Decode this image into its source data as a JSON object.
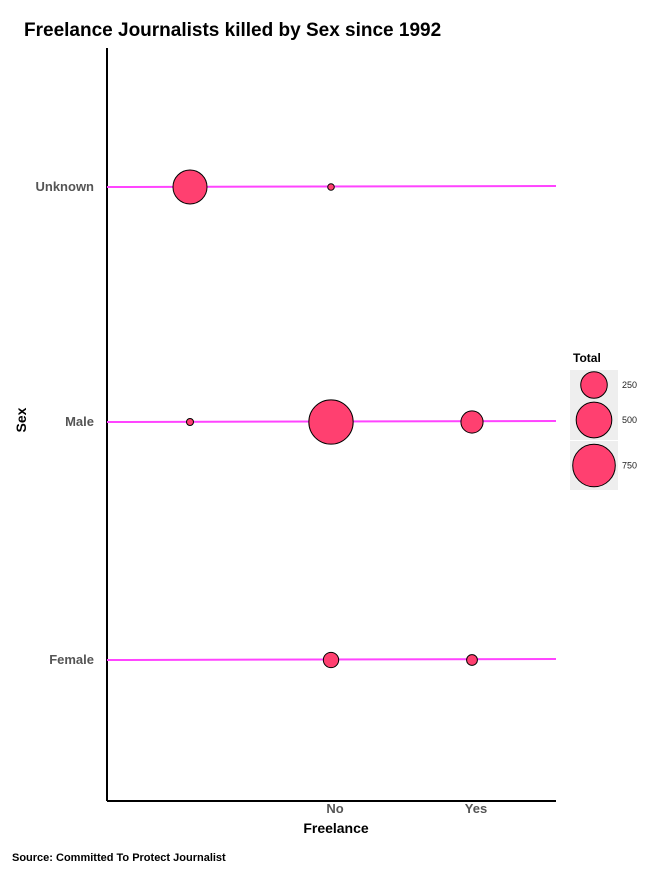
{
  "chart_data": {
    "type": "scatter",
    "title": "Freelance Journalists killed by Sex since 1992",
    "xlabel": "Freelance",
    "ylabel": "Sex",
    "x_categories": [
      "",
      "No",
      "Yes"
    ],
    "y_categories": [
      "Female",
      "Male",
      "Unknown"
    ],
    "series": [
      {
        "name": "Total",
        "points": [
          {
            "x": "",
            "y": "Unknown",
            "size": 450
          },
          {
            "x": "No",
            "y": "Unknown",
            "size": 2
          },
          {
            "x": "",
            "y": "Male",
            "size": 3
          },
          {
            "x": "No",
            "y": "Male",
            "size": 820
          },
          {
            "x": "Yes",
            "y": "Male",
            "size": 160
          },
          {
            "x": "No",
            "y": "Female",
            "size": 60
          },
          {
            "x": "Yes",
            "y": "Female",
            "size": 20
          }
        ]
      }
    ],
    "legend": {
      "title": "Total",
      "position": "right",
      "entries": [
        {
          "label": "250",
          "value": 250
        },
        {
          "label": "500",
          "value": 500
        },
        {
          "label": "750",
          "value": 750
        }
      ]
    },
    "caption": "Source: Committed To Protect Journalist",
    "colors": {
      "point_fill": "#ff4070",
      "point_stroke": "#000000",
      "line": "#ff44ff",
      "axis": "#000000",
      "legend_bg": "#eeeeee"
    },
    "grid": false
  }
}
